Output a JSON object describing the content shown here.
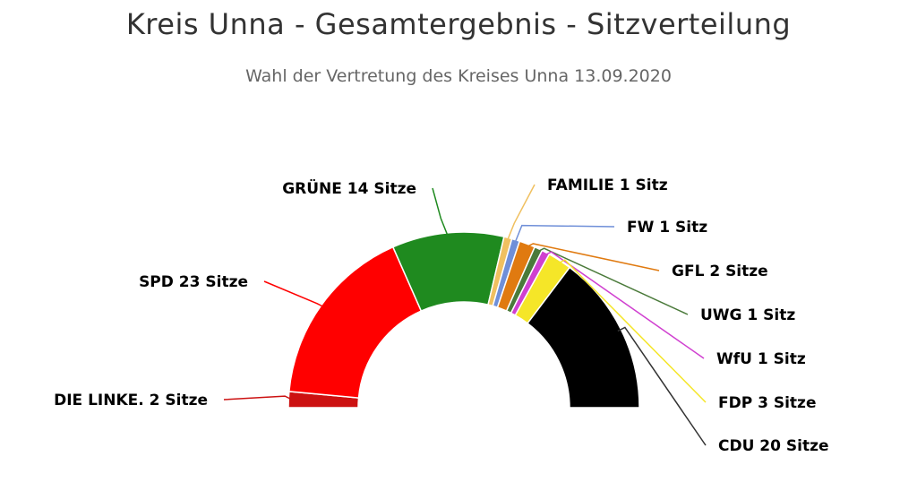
{
  "chart_data": {
    "type": "pie",
    "title": "Kreis Unna - Gesamtergebnis - Sitzverteilung",
    "subtitle": "Wahl der Vertretung des Kreises Unna 13.09.2020",
    "start_angle": -90,
    "end_angle": 90,
    "series": [
      {
        "name": "Sitze",
        "data": [
          {
            "party": "DIE LINKE.",
            "seats": 2,
            "label": "DIE LINKE. 2 Sitze",
            "color": "#cc1111"
          },
          {
            "party": "SPD",
            "seats": 23,
            "label": "SPD 23 Sitze",
            "color": "#ff0000"
          },
          {
            "party": "GRÜNE",
            "seats": 14,
            "label": "GRÜNE 14 Sitze",
            "color": "#1f8a1f"
          },
          {
            "party": "FAMILIE",
            "seats": 1,
            "label": "FAMILIE 1 Sitz",
            "color": "#f0c060"
          },
          {
            "party": "FW",
            "seats": 1,
            "label": "FW 1 Sitz",
            "color": "#6f8fd8"
          },
          {
            "party": "GFL",
            "seats": 2,
            "label": "GFL 2 Sitze",
            "color": "#e07a10"
          },
          {
            "party": "UWG",
            "seats": 1,
            "label": "UWG 1 Sitz",
            "color": "#4a7a3a"
          },
          {
            "party": "WfU",
            "seats": 1,
            "label": "WfU 1 Sitz",
            "color": "#d040d0"
          },
          {
            "party": "FDP",
            "seats": 3,
            "label": "FDP 3 Sitze",
            "color": "#f5e628"
          },
          {
            "party": "CDU",
            "seats": 20,
            "label": "CDU 20 Sitze",
            "color": "#000000"
          }
        ]
      }
    ]
  }
}
